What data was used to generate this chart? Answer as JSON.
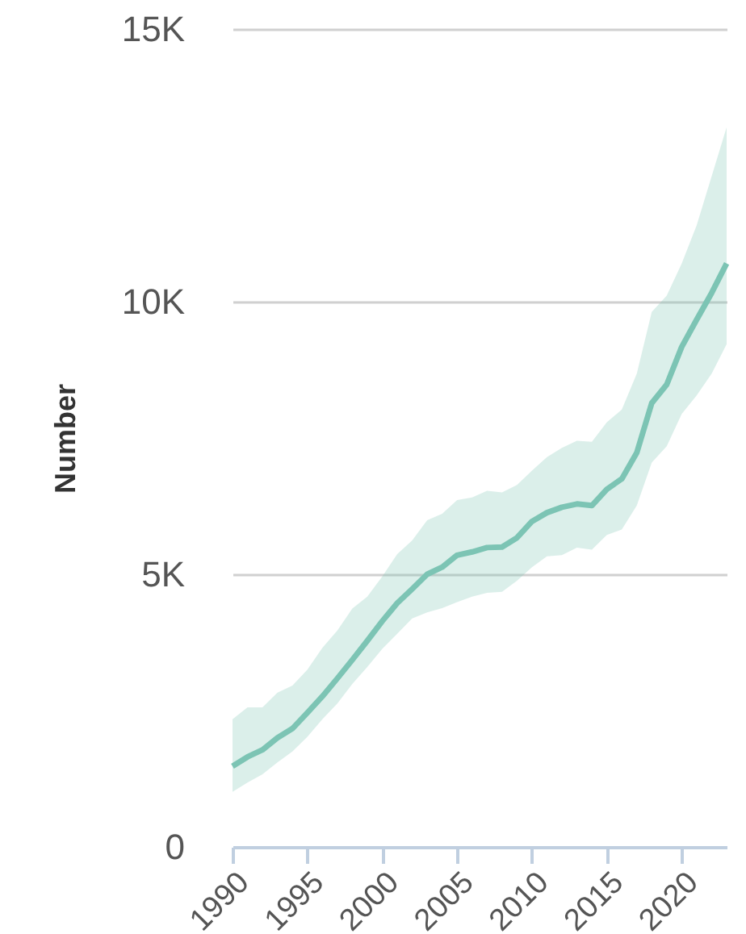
{
  "chart_data": {
    "type": "line",
    "ylabel": "Number",
    "x": [
      1990,
      1991,
      1992,
      1993,
      1994,
      1995,
      1996,
      1997,
      1998,
      1999,
      2000,
      2001,
      2002,
      2003,
      2004,
      2005,
      2006,
      2007,
      2008,
      2009,
      2010,
      2011,
      2012,
      2013,
      2014,
      2015,
      2016,
      2017,
      2018,
      2019,
      2020,
      2021,
      2022,
      2023
    ],
    "series": [
      {
        "color": "#7cc4b4",
        "values": [
          1480,
          1650,
          1780,
          2000,
          2170,
          2460,
          2760,
          3090,
          3430,
          3780,
          4140,
          4470,
          4730,
          5000,
          5130,
          5350,
          5410,
          5490,
          5500,
          5670,
          5970,
          6130,
          6230,
          6290,
          6260,
          6560,
          6750,
          7230,
          8140,
          8480,
          9170,
          9670,
          10160,
          10700
        ],
        "lower": [
          1010,
          1180,
          1330,
          1550,
          1750,
          2020,
          2340,
          2630,
          2990,
          3300,
          3630,
          3910,
          4190,
          4300,
          4380,
          4490,
          4590,
          4660,
          4680,
          4880,
          5130,
          5330,
          5350,
          5490,
          5450,
          5720,
          5820,
          6260,
          7050,
          7350,
          7940,
          8280,
          8680,
          9220
        ],
        "upper": [
          2340,
          2560,
          2560,
          2830,
          2960,
          3250,
          3650,
          3970,
          4370,
          4590,
          4960,
          5370,
          5620,
          5990,
          6110,
          6360,
          6410,
          6530,
          6500,
          6640,
          6900,
          7150,
          7320,
          7450,
          7430,
          7790,
          8020,
          8680,
          9810,
          10110,
          10700,
          11400,
          12300,
          13200
        ]
      }
    ],
    "xlim": [
      1990,
      2023
    ],
    "xticks": [
      1990,
      1995,
      2000,
      2005,
      2010,
      2015,
      2020
    ],
    "ylim": [
      0,
      15000
    ],
    "yticks": [
      0,
      {
        "value": 5000,
        "label": "5K"
      },
      {
        "value": 10000,
        "label": "10K"
      },
      {
        "value": 15000,
        "label": "15K"
      }
    ],
    "grid": "y"
  }
}
